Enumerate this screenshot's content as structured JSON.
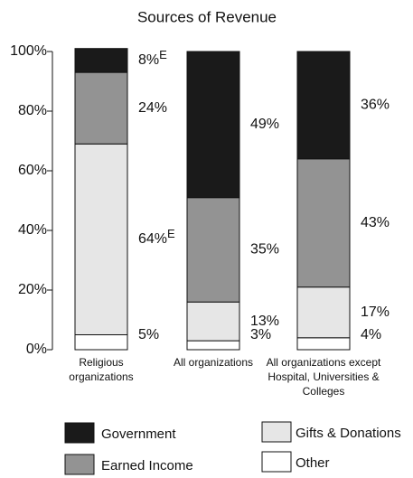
{
  "chart_data": {
    "type": "stacked_bar",
    "title": "Sources of Revenue",
    "categories": [
      "Religious organizations",
      "All organizations",
      "All organizations except Hospital, Universities & Colleges"
    ],
    "series": [
      {
        "name": "Other",
        "color": "#ffffff",
        "values": [
          5,
          3,
          4
        ]
      },
      {
        "name": "Gifts & Donations",
        "color": "#e6e6e6",
        "values": [
          64,
          13,
          17
        ],
        "value_labels": [
          "64%E",
          "13%",
          "17%"
        ]
      },
      {
        "name": "Earned Income",
        "color": "#939393",
        "values": [
          24,
          35,
          43
        ]
      },
      {
        "name": "Government",
        "color": "#1a1a1a",
        "values": [
          8,
          49,
          36
        ],
        "value_labels": [
          "8%E",
          "49%",
          "36%"
        ]
      }
    ],
    "value_labels": [
      [
        "5%",
        "3%",
        "4%"
      ],
      null,
      [
        "24%",
        "35%",
        "43%"
      ],
      null
    ],
    "ylim": [
      0,
      100
    ],
    "yticks": [
      {
        "value": 0,
        "label": "0%"
      },
      {
        "value": 20,
        "label": "20%"
      },
      {
        "value": 40,
        "label": "40%"
      },
      {
        "value": 60,
        "label": "60%"
      },
      {
        "value": 80,
        "label": "80%"
      },
      {
        "value": 100,
        "label": "100%"
      }
    ]
  }
}
